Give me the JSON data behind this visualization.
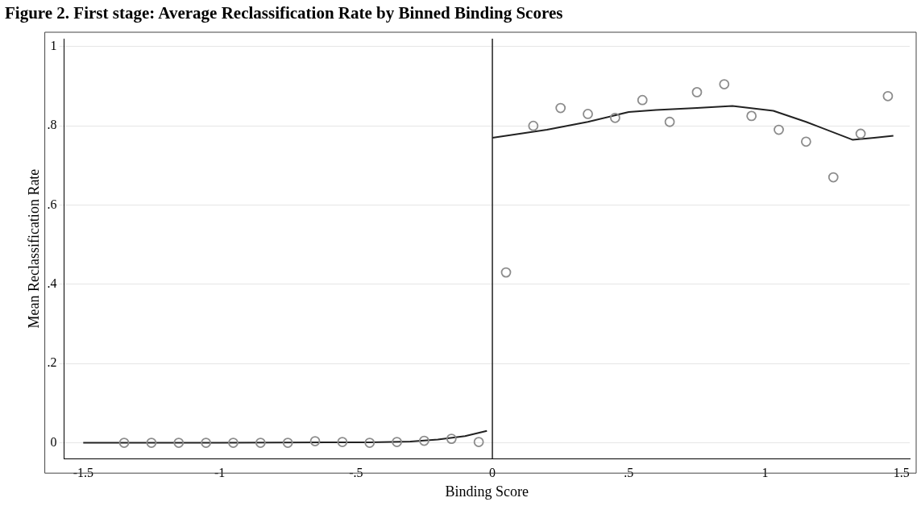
{
  "chart_data": {
    "type": "scatter",
    "title": "Figure 2. First stage: Average Reclassification Rate by Binned Binding Scores",
    "xlabel": "Binding Score",
    "ylabel": "Mean Reclassification Rate",
    "xlim": [
      -1.57,
      1.53
    ],
    "xticks": [
      {
        "value": -1.5,
        "label": "-1.5"
      },
      {
        "value": -1,
        "label": "-1"
      },
      {
        "value": -0.5,
        "label": "-.5"
      },
      0,
      {
        "value": 0.5,
        "label": ".5"
      },
      1,
      {
        "value": 1.5,
        "label": "1.5"
      }
    ],
    "ylim": [
      -0.04,
      1.02
    ],
    "yticks": [
      0,
      {
        "value": 0.2,
        "label": ".2"
      },
      {
        "value": 0.4,
        "label": ".4"
      },
      {
        "value": 0.6,
        "label": ".6"
      },
      {
        "value": 0.8,
        "label": ".8"
      },
      1
    ],
    "grid": "y",
    "legend": false,
    "marker": "circle",
    "ref_lines": [
      {
        "axis": "x",
        "value": 0,
        "color": "#222222"
      }
    ],
    "series": [
      {
        "type": "scatter",
        "color": "#8c8c8c",
        "x": [
          -1.35,
          -1.25,
          -1.15,
          -1.05,
          -0.95,
          -0.85,
          -0.75,
          -0.65,
          -0.55,
          -0.45,
          -0.35,
          -0.25,
          -0.15,
          -0.05,
          0.05,
          0.15,
          0.25,
          0.35,
          0.45,
          0.55,
          0.65,
          0.75,
          0.85,
          0.95,
          1.05,
          1.15,
          1.25,
          1.35,
          1.45
        ],
        "values": [
          0,
          0,
          0,
          0,
          0,
          0,
          0,
          0.004,
          0.002,
          0,
          0.002,
          0.005,
          0.01,
          0.002,
          0.43,
          0.8,
          0.845,
          0.83,
          0.82,
          0.865,
          0.81,
          0.885,
          0.905,
          0.825,
          0.79,
          0.76,
          0.67,
          0.78,
          0.875
        ]
      },
      {
        "type": "line",
        "color": "#222222",
        "marker": "none",
        "x": [
          -1.5,
          -1.0,
          -0.6,
          -0.45,
          -0.3,
          -0.2,
          -0.1,
          -0.02
        ],
        "values": [
          0,
          0,
          0.001,
          0.001,
          0.003,
          0.008,
          0.017,
          0.03
        ]
      },
      {
        "type": "line",
        "color": "#222222",
        "marker": "none",
        "x": [
          0.0,
          0.2,
          0.35,
          0.5,
          0.6,
          0.75,
          0.88,
          1.03,
          1.15,
          1.32,
          1.4,
          1.47
        ],
        "values": [
          0.77,
          0.79,
          0.81,
          0.835,
          0.84,
          0.845,
          0.85,
          0.838,
          0.81,
          0.765,
          0.77,
          0.775
        ]
      }
    ]
  }
}
